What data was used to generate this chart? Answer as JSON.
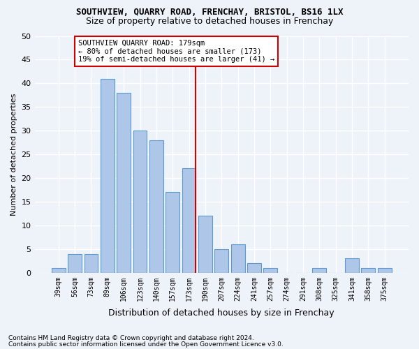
{
  "title": "SOUTHVIEW, QUARRY ROAD, FRENCHAY, BRISTOL, BS16 1LX",
  "subtitle": "Size of property relative to detached houses in Frenchay",
  "xlabel": "Distribution of detached houses by size in Frenchay",
  "ylabel": "Number of detached properties",
  "categories": [
    "39sqm",
    "56sqm",
    "73sqm",
    "89sqm",
    "106sqm",
    "123sqm",
    "140sqm",
    "157sqm",
    "173sqm",
    "190sqm",
    "207sqm",
    "224sqm",
    "241sqm",
    "257sqm",
    "274sqm",
    "291sqm",
    "308sqm",
    "325sqm",
    "341sqm",
    "358sqm",
    "375sqm"
  ],
  "values": [
    1,
    4,
    4,
    41,
    38,
    30,
    28,
    17,
    22,
    12,
    5,
    6,
    2,
    1,
    0,
    0,
    1,
    0,
    3,
    1,
    1
  ],
  "bar_color": "#aec6e8",
  "bar_edgecolor": "#5a9bd4",
  "vline_index": 8,
  "vline_color": "#cc0000",
  "annotation_text": "SOUTHVIEW QUARRY ROAD: 179sqm\n← 80% of detached houses are smaller (173)\n19% of semi-detached houses are larger (41) →",
  "annotation_box_color": "#ffffff",
  "annotation_box_edgecolor": "#cc0000",
  "footnote1": "Contains HM Land Registry data © Crown copyright and database right 2024.",
  "footnote2": "Contains public sector information licensed under the Open Government Licence v3.0.",
  "bg_color": "#eef2f9",
  "plot_bg_color": "#eef2f9",
  "grid_color": "#ffffff",
  "ylim": [
    0,
    50
  ],
  "yticks": [
    0,
    5,
    10,
    15,
    20,
    25,
    30,
    35,
    40,
    45,
    50
  ]
}
